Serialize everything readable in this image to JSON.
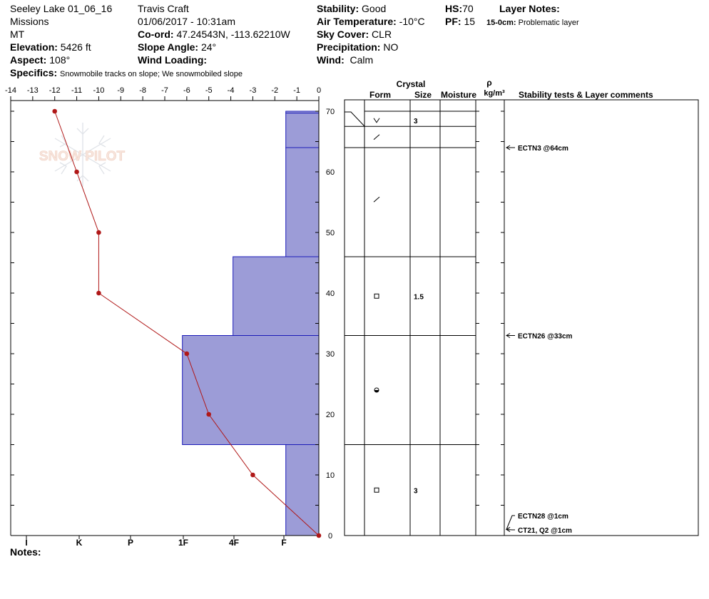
{
  "header": {
    "location": "Seeley Lake 01_06_16",
    "range": "Missions",
    "state": "MT",
    "elevation_label": "Elevation:",
    "elevation": "5426 ft",
    "aspect_label": "Aspect:",
    "aspect": "108°",
    "specifics_label": "Specifics:",
    "specifics": "Snowmobile tracks on slope; We snowmobiled slope",
    "observer": "Travis  Craft",
    "datetime": "01/06/2017 - 10:31am",
    "coord_label": "Co-ord:",
    "coord": "47.24543N, -113.62210W",
    "slope_label": "Slope Angle:",
    "slope": "24°",
    "wind_loading_label": "Wind Loading:",
    "wind_loading": "",
    "stability_label": "Stability:",
    "stability": "Good",
    "air_temp_label": "Air Temperature:",
    "air_temp": "-10°C",
    "sky_label": "Sky Cover:",
    "sky": "CLR",
    "precip_label": "Precipitation:",
    "precip": "NO",
    "wind_label": "Wind:",
    "wind": "Calm",
    "hs_label": "HS:",
    "hs": "70",
    "pf_label": "PF:",
    "pf": "15",
    "layer_notes_label": "Layer Notes:",
    "layer_note_depth": "15-0cm:",
    "layer_note_text": "Problematic layer"
  },
  "notes_label": "Notes:",
  "watermark": "SNOW PILOT",
  "colors": {
    "hardness_fill": "#9c9cd7",
    "hardness_stroke": "#1b1bb8",
    "temp_line": "#b01818"
  },
  "chart_data": {
    "type": "snow_profile",
    "temperature_axis": {
      "ticks": [
        -14,
        -13,
        -12,
        -11,
        -10,
        -9,
        -8,
        -7,
        -6,
        -5,
        -4,
        -3,
        -2,
        -1,
        0
      ],
      "range": [
        -14,
        0
      ]
    },
    "depth_axis": {
      "ticks": [
        0,
        10,
        20,
        30,
        40,
        50,
        60,
        70
      ],
      "range": [
        0,
        70
      ]
    },
    "hardness_axis": {
      "labels": [
        "I",
        "K",
        "P",
        "1F",
        "4F",
        "F"
      ]
    },
    "temperature_profile": [
      {
        "depth": 70,
        "temp": -12
      },
      {
        "depth": 60,
        "temp": -11
      },
      {
        "depth": 50,
        "temp": -10
      },
      {
        "depth": 40,
        "temp": -10
      },
      {
        "depth": 30,
        "temp": -6
      },
      {
        "depth": 20,
        "temp": -5
      },
      {
        "depth": 10,
        "temp": -3
      },
      {
        "depth": 0,
        "temp": 0
      }
    ],
    "hardness_layers": [
      {
        "top": 70,
        "bottom": 69.7,
        "temp_edge": -1.5
      },
      {
        "top": 69.7,
        "bottom": 64,
        "temp_edge": -1.5
      },
      {
        "top": 64,
        "bottom": 46,
        "temp_edge": -1.5
      },
      {
        "top": 46,
        "bottom": 33,
        "temp_edge": -3.9
      },
      {
        "top": 33,
        "bottom": 15,
        "temp_edge": -6.2
      },
      {
        "top": 15,
        "bottom": 0,
        "temp_edge": -1.5
      }
    ],
    "layer_table": {
      "headers": {
        "crystal": "Crystal",
        "form": "Form",
        "size": "Size",
        "moisture": "Moisture",
        "rho": "ρ",
        "rho_units": "kg/m³",
        "stability": "Stability tests & Layer comments"
      },
      "boundaries": [
        70,
        67.5,
        64,
        46,
        33,
        15,
        0
      ],
      "rows": [
        {
          "depth": 68.5,
          "form": "precip-particle",
          "size": "3"
        },
        {
          "depth": 65.8,
          "form": "decomposing",
          "size": ""
        },
        {
          "depth": 55.5,
          "form": "decomposing",
          "size": ""
        },
        {
          "depth": 39.5,
          "form": "faceted",
          "size": "1.5"
        },
        {
          "depth": 24,
          "form": "rounding-faceted",
          "size": ""
        },
        {
          "depth": 7.5,
          "form": "faceted",
          "size": "3"
        }
      ]
    },
    "stability_tests": [
      {
        "label": "ECTN3 @64cm",
        "depth": 64
      },
      {
        "label": "ECTN26 @33cm",
        "depth": 33
      },
      {
        "label": "ECTN28 @1cm",
        "depth": 1
      },
      {
        "label": "CT21, Q2 @1cm",
        "depth": 1
      }
    ]
  }
}
